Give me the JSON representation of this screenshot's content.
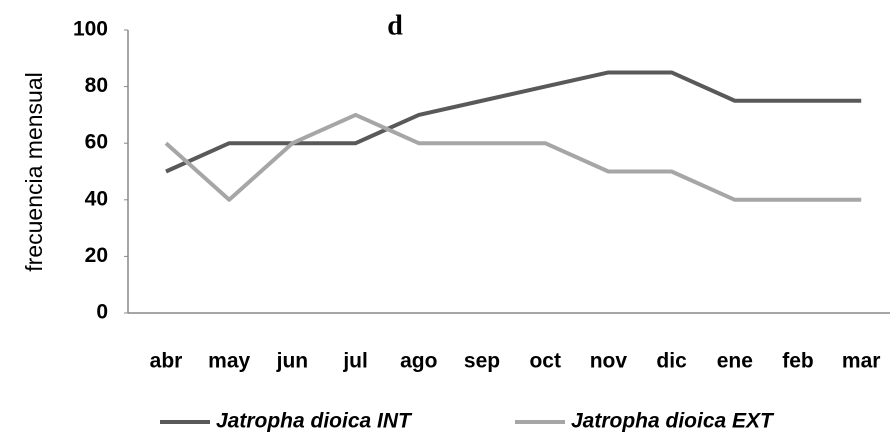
{
  "chart_data": {
    "type": "line",
    "title": "d",
    "y_label": "frecuencia mensual",
    "categories": [
      "abr",
      "may",
      "jun",
      "jul",
      "ago",
      "sep",
      "oct",
      "nov",
      "dic",
      "ene",
      "feb",
      "mar"
    ],
    "series": [
      {
        "name": "Jatropha dioica INT",
        "color": "#595959",
        "values": [
          50,
          60,
          60,
          60,
          70,
          75,
          80,
          85,
          85,
          75,
          75,
          75
        ]
      },
      {
        "name": "Jatropha dioica EXT",
        "color": "#a6a6a6",
        "values": [
          60,
          40,
          60,
          70,
          60,
          60,
          60,
          50,
          50,
          40,
          40,
          40
        ]
      }
    ],
    "ylim": [
      0,
      100
    ],
    "yticks": [
      0,
      20,
      40,
      60,
      80,
      100
    ],
    "grid": false,
    "legend": "bottom"
  }
}
